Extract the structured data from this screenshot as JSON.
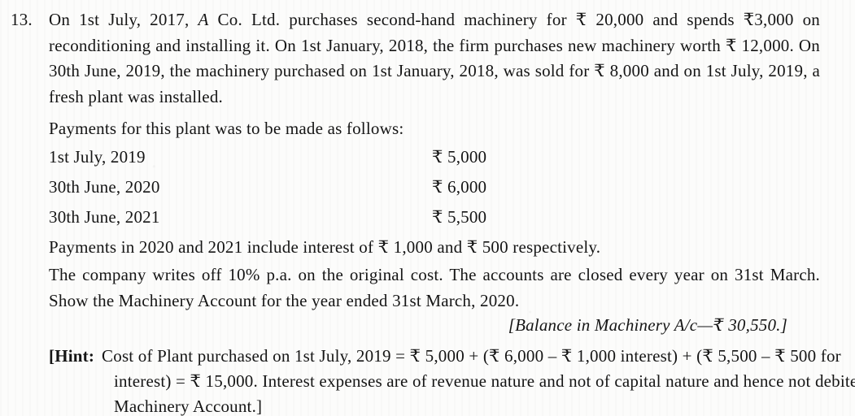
{
  "question": {
    "number": "13.",
    "intro": {
      "part1": "On 1st July, 2017, ",
      "company_italic": "A",
      "part2": " Co. Ltd. purchases second-hand machinery for ₹ 20,000 and spends ₹3,000 on reconditioning and installing it. On 1st January, 2018, the firm purchases new machinery worth ₹ 12,000. On 30th June, 2019, the machinery purchased on 1st January, 2018, was sold for ₹ 8,000 and on 1st July, 2019, a fresh plant was installed."
    },
    "interest_note": "Payments in 2020 and 2021 include interest of ₹ 1,000 and ₹ 500 respectively.",
    "instruction": "The company writes off 10% p.a. on the original cost. The accounts are closed every year on 31st March. Show the Machinery Account for the year ended 31st March, 2020.",
    "answer": "[Balance in Machinery A/c—₹ 30,550.]"
  },
  "payments": {
    "intro": "Payments for this plant was to be made as follows:",
    "rows": [
      {
        "date": "1st July, 2019",
        "amount": "₹ 5,000"
      },
      {
        "date": "30th June, 2020",
        "amount": "₹ 6,000"
      },
      {
        "date": "30th June, 2021",
        "amount": "₹ 5,500"
      }
    ]
  },
  "hint": {
    "label": "[Hint:",
    "text": "Cost of Plant purchased on 1st July, 2019 = ₹ 5,000 + (₹ 6,000 – ₹ 1,000 interest) + (₹ 5,500 – ₹ 500 for interest) = ₹ 15,000. Interest expenses are of revenue nature and not of capital nature and hence not debited to Machinery Account.]"
  }
}
